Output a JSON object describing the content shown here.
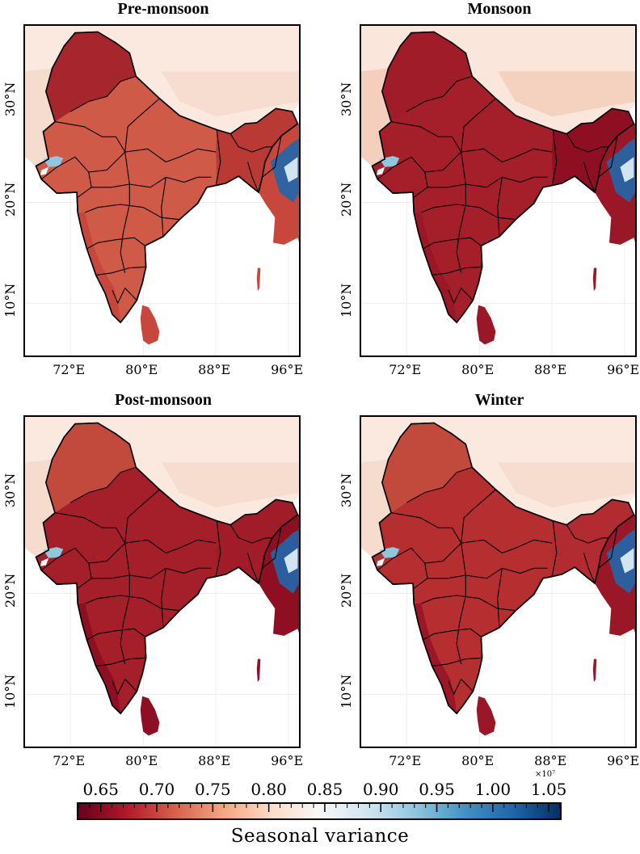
{
  "panels": [
    {
      "title": "Pre-monsoon",
      "core": "#cf5a48",
      "ne": "#b93a35",
      "nw": "#a7252d",
      "plateau": "#f6dccd",
      "tibet": "#fbe9e0",
      "coast": "#c7473c"
    },
    {
      "title": "Monsoon",
      "core": "#a51f2b",
      "ne": "#8e0f22",
      "nw": "#a11c29",
      "plateau": "#f4cfbd",
      "tibet": "#fbe6dc",
      "coast": "#9a1727"
    },
    {
      "title": "Post-monsoon",
      "core": "#a51f2b",
      "ne": "#a11c29",
      "nw": "#c24a3c",
      "plateau": "#f6dccd",
      "tibet": "#fbe9e0",
      "coast": "#8e0f22"
    },
    {
      "title": "Winter",
      "core": "#b52f31",
      "ne": "#b12b30",
      "nw": "#c24a3c",
      "plateau": "#f6dccd",
      "tibet": "#fbe9e0",
      "coast": "#9a1727"
    }
  ],
  "x_ticks": [
    "72°E",
    "80°E",
    "88°E",
    "96°E"
  ],
  "y_ticks": [
    "30°N",
    "20°N",
    "10°N"
  ],
  "colorbar": {
    "label": "Seasonal variance",
    "ticks": [
      "0.65",
      "0.70",
      "0.75",
      "0.80",
      "0.85",
      "0.90",
      "0.95",
      "1.00",
      "1.05"
    ],
    "exponent": "×10⁷",
    "min": 0.63,
    "max": 1.06,
    "colors": [
      "#67001f",
      "#b2182b",
      "#d6604d",
      "#f4a582",
      "#fddbc7",
      "#f7f7f7",
      "#d1e5f0",
      "#92c5de",
      "#4393c3",
      "#2166ac",
      "#053061"
    ]
  }
}
